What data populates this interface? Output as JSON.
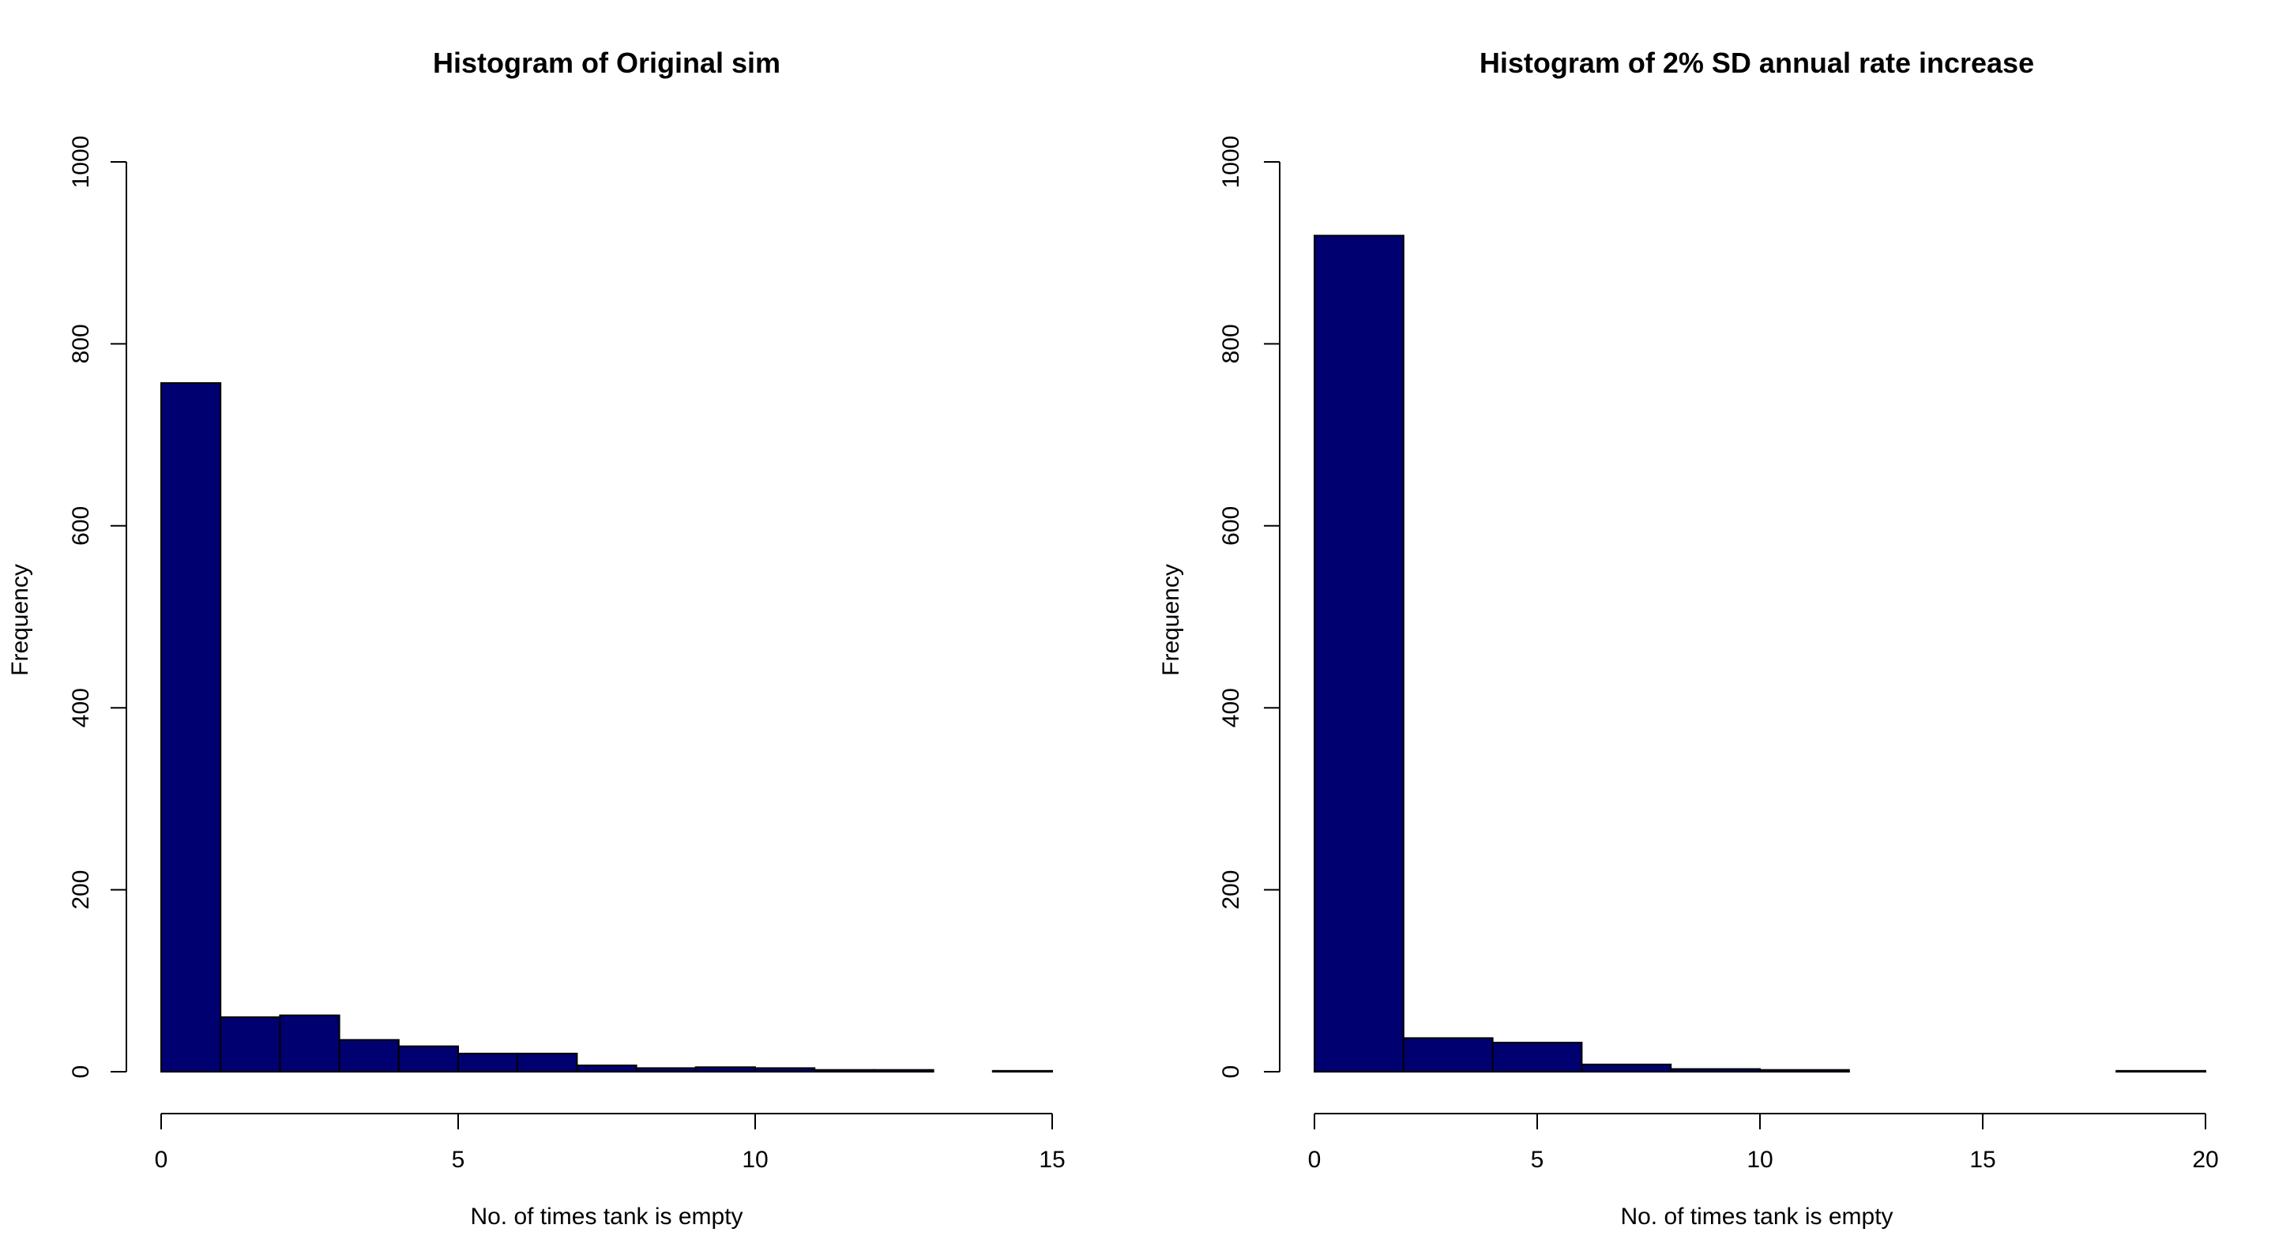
{
  "chart_data": [
    {
      "type": "bar",
      "title": "Histogram of Original sim",
      "xlabel": "No. of times tank is empty",
      "ylabel": "Frequency",
      "xlim": [
        0,
        15
      ],
      "ylim": [
        0,
        1000
      ],
      "xticks": [
        0,
        5,
        10,
        15
      ],
      "yticks": [
        0,
        200,
        400,
        600,
        800,
        1000
      ],
      "bin_edges": [
        0,
        1,
        2,
        3,
        4,
        5,
        6,
        7,
        8,
        9,
        10,
        11,
        12,
        13,
        14,
        15
      ],
      "values": [
        757,
        60,
        62,
        35,
        28,
        20,
        20,
        7,
        4,
        5,
        4,
        2,
        2,
        0,
        1
      ],
      "bar_color": "#000070",
      "grid": false
    },
    {
      "type": "bar",
      "title": "Histogram of 2% SD annual rate increase",
      "xlabel": "No. of times tank is empty",
      "ylabel": "Frequency",
      "xlim": [
        0,
        20
      ],
      "ylim": [
        0,
        1000
      ],
      "xticks": [
        0,
        5,
        10,
        15,
        20
      ],
      "yticks": [
        0,
        200,
        400,
        600,
        800,
        1000
      ],
      "bin_edges": [
        0,
        2,
        4,
        6,
        8,
        10,
        12,
        14,
        16,
        18,
        20
      ],
      "values": [
        919,
        37,
        32,
        8,
        3,
        2,
        0,
        0,
        0,
        1
      ],
      "bar_color": "#000070",
      "grid": false
    }
  ]
}
